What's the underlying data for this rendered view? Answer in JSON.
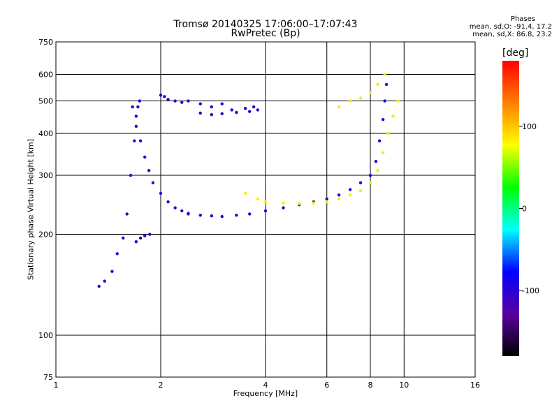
{
  "chart_data": {
    "type": "scatter",
    "title": "Tromsø 20140325 17:06:00–17:07:43",
    "subtitle": "RwPretec (Bp)",
    "xlabel": "Frequency [MHz]",
    "ylabel": "Stationary phase Virtual Height [km]",
    "x_scale": "log",
    "y_scale": "log",
    "xlim": [
      1,
      16
    ],
    "ylim": [
      75,
      750
    ],
    "x_ticks": [
      "1",
      "2",
      "4",
      "6",
      "8",
      "10",
      "16"
    ],
    "y_ticks": [
      "750",
      "600",
      "500",
      "400",
      "300",
      "200",
      "100",
      "75"
    ],
    "grid": true,
    "colorbar": {
      "label": "[deg]",
      "range": [
        -180,
        180
      ],
      "ticks": [
        "100",
        "0",
        "-100"
      ],
      "colors": [
        "#000000",
        "#5a00a0",
        "#0000ff",
        "#00ffff",
        "#00ff00",
        "#ffff00",
        "#ff8000",
        "#ff0000"
      ]
    },
    "stats": {
      "heading": "Phases",
      "o_line": "mean, sd,O: -91.4, 17.2",
      "x_line": "mean, sd,X:  86.8, 23.2"
    },
    "series": [
      {
        "phase_deg": -100,
        "traces": [
          {
            "x": [
              1.33,
              1.38,
              1.45,
              1.5,
              1.56,
              1.6,
              1.64,
              1.68,
              1.7,
              1.72,
              1.74
            ],
            "y": [
              140,
              145,
              155,
              175,
              195,
              230,
              300,
              380,
              450,
              480,
              500
            ]
          },
          {
            "x": [
              1.66,
              1.7,
              1.75,
              1.8,
              1.85,
              1.9,
              2.0,
              2.1,
              2.2,
              2.3,
              2.4
            ],
            "y": [
              480,
              420,
              380,
              340,
              310,
              285,
              265,
              250,
              240,
              235,
              231
            ]
          },
          {
            "x": [
              1.7,
              1.75,
              1.8,
              1.86
            ],
            "y": [
              190,
              195,
              198,
              200
            ]
          },
          {
            "x": [
              2.4,
              2.6,
              2.8,
              3.0,
              3.3,
              3.6,
              4.0,
              4.5,
              5.0,
              5.5,
              6.0,
              6.5,
              7.0,
              7.5,
              8.0,
              8.3,
              8.5,
              8.7,
              8.8,
              8.9
            ],
            "y": [
              230,
              228,
              227,
              226,
              228,
              230,
              235,
              240,
              245,
              250,
              255,
              262,
              272,
              285,
              300,
              330,
              380,
              440,
              500,
              560
            ]
          },
          {
            "x": [
              2.0,
              2.05,
              2.1,
              2.2,
              2.3
            ],
            "y": [
              520,
              515,
              505,
              500,
              495
            ]
          },
          {
            "x": [
              2.4,
              2.6,
              2.8,
              3.0,
              3.2,
              3.5,
              3.7
            ],
            "y": [
              500,
              490,
              480,
              490,
              470,
              475,
              480
            ]
          },
          {
            "x": [
              2.6,
              2.8,
              3.0,
              3.3,
              3.6,
              3.8
            ],
            "y": [
              460,
              455,
              458,
              462,
              465,
              470
            ]
          }
        ]
      },
      {
        "phase_deg": 85,
        "traces": [
          {
            "x": [
              3.5,
              3.8,
              4.0,
              4.5,
              5.0,
              5.5,
              6.0,
              6.5,
              7.0,
              7.5,
              8.0,
              8.4,
              8.7,
              9.0,
              9.3,
              9.6
            ],
            "y": [
              265,
              255,
              250,
              248,
              247,
              248,
              250,
              255,
              262,
              270,
              285,
              310,
              350,
              400,
              450,
              500
            ]
          },
          {
            "x": [
              6.5,
              7.0,
              7.5,
              8.0,
              8.4,
              8.8
            ],
            "y": [
              480,
              500,
              510,
              530,
              560,
              600
            ]
          }
        ]
      }
    ]
  }
}
